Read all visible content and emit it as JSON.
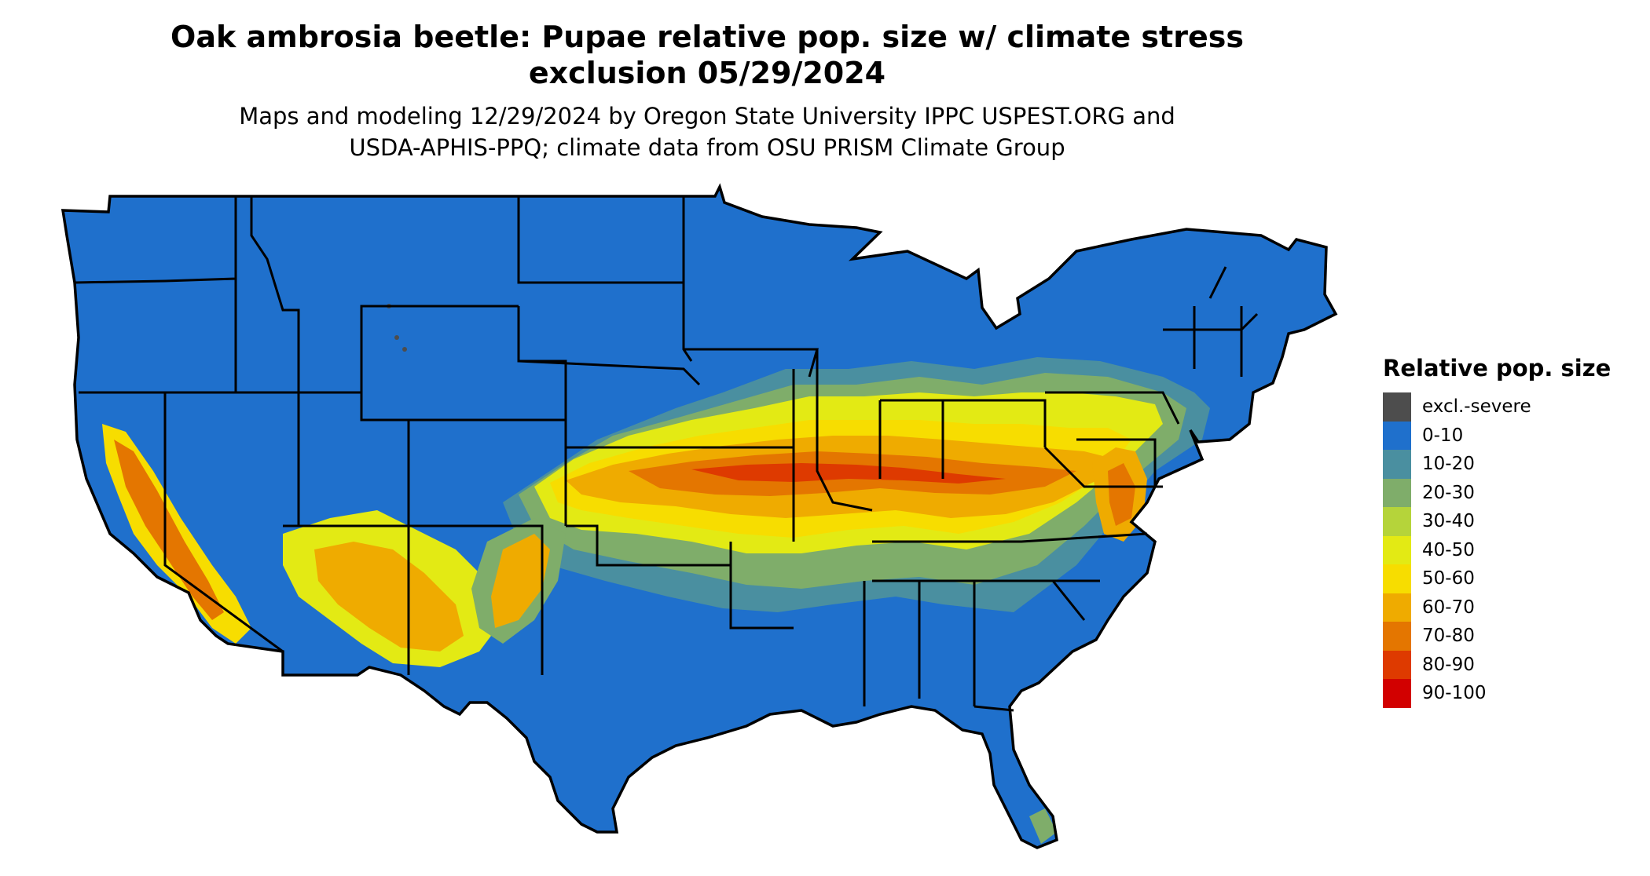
{
  "title_line1": "Oak ambrosia beetle: Pupae relative pop. size w/ climate stress",
  "title_line2": "exclusion 05/29/2024",
  "subtitle_line1": "Maps and modeling 12/29/2024 by Oregon State University IPPC USPEST.ORG and",
  "subtitle_line2": "USDA-APHIS-PPQ; climate data from OSU PRISM Climate Group",
  "legend": {
    "title": "Relative pop. size",
    "items": [
      {
        "label": "excl.-severe",
        "color": "#4d4d4d"
      },
      {
        "label": "0-10",
        "color": "#1f70cc"
      },
      {
        "label": "10-20",
        "color": "#4a8fa0"
      },
      {
        "label": "20-30",
        "color": "#7fad6a"
      },
      {
        "label": "30-40",
        "color": "#b5d43a"
      },
      {
        "label": "40-50",
        "color": "#e3ea14"
      },
      {
        "label": "50-60",
        "color": "#f7dd00"
      },
      {
        "label": "60-70",
        "color": "#efab00"
      },
      {
        "label": "70-80",
        "color": "#e47600"
      },
      {
        "label": "80-90",
        "color": "#de3a00"
      },
      {
        "label": "90-100",
        "color": "#d20000"
      }
    ]
  }
}
